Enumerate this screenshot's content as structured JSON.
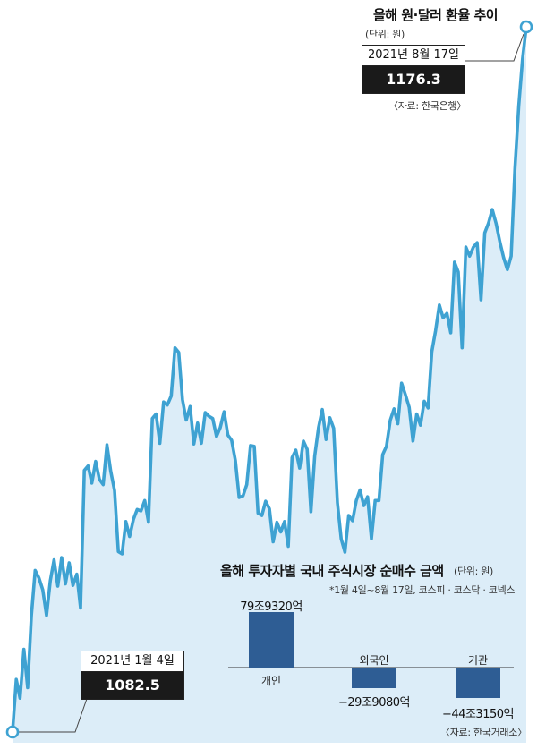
{
  "line_chart": {
    "title": "올해 원·달러 환율 추이",
    "unit": "(단위: 원)",
    "source": "〈자료: 한국은행〉",
    "start": {
      "date": "2021년 1월 4일",
      "value": "1082.5"
    },
    "end": {
      "date": "2021년 8월 17일",
      "value": "1176.3"
    }
  },
  "bar_chart": {
    "title": "올해 투자자별 국내 주식시장 순매수 금액",
    "unit": "(단위: 원)",
    "note": "*1월 4일~8월 17일, 코스피 · 코스닥 · 코넥스",
    "source": "〈자료: 한국거래소〉",
    "labels": {
      "individual": "79조9320억",
      "foreign": "−29조9080억",
      "institution": "−44조3150억"
    },
    "categories": {
      "individual": "개인",
      "foreign": "외국인",
      "institution": "기관"
    }
  },
  "chart_data": [
    {
      "type": "line",
      "title": "올해 원·달러 환율 추이",
      "ylabel": "원",
      "x_range": [
        "2021-01-04",
        "2021-08-17"
      ],
      "ylim": [
        1080,
        1178
      ],
      "values": [
        1082.5,
        1089.5,
        1087.0,
        1093.5,
        1088.4,
        1098.0,
        1104.0,
        1103.0,
        1101.4,
        1098.0,
        1102.6,
        1105.4,
        1101.9,
        1105.7,
        1102.2,
        1105.0,
        1102.0,
        1103.5,
        1099.0,
        1117.3,
        1117.9,
        1115.6,
        1118.5,
        1116.1,
        1115.4,
        1120.7,
        1117.2,
        1114.6,
        1106.5,
        1106.2,
        1110.5,
        1108.5,
        1110.8,
        1112.1,
        1111.9,
        1113.3,
        1110.4,
        1124.2,
        1124.8,
        1120.9,
        1126.4,
        1126.0,
        1127.2,
        1133.6,
        1133.0,
        1126.7,
        1124.0,
        1125.8,
        1120.8,
        1123.6,
        1120.9,
        1125.0,
        1124.5,
        1124.2,
        1121.8,
        1123.0,
        1125.1,
        1122.0,
        1121.3,
        1118.6,
        1113.7,
        1113.9,
        1115.4,
        1120.6,
        1120.5,
        1111.6,
        1111.3,
        1113.2,
        1112.2,
        1107.8,
        1110.4,
        1109.1,
        1110.5,
        1107.2,
        1119.0,
        1120.0,
        1117.6,
        1121.2,
        1120.1,
        1111.8,
        1119.2,
        1123.0,
        1125.4,
        1121.4,
        1124.3,
        1122.9,
        1113.0,
        1108.2,
        1106.4,
        1111.3,
        1110.6,
        1113.3,
        1114.7,
        1112.6,
        1113.8,
        1108.2,
        1113.3,
        1113.3,
        1119.4,
        1120.5,
        1124.0,
        1125.5,
        1123.5,
        1128.9,
        1127.4,
        1125.7,
        1121.2,
        1124.8,
        1123.3,
        1126.5,
        1125.6,
        1133.1,
        1135.9,
        1139.3,
        1137.6,
        1138.2,
        1135.6,
        1145.0,
        1143.7,
        1133.6,
        1147.0,
        1145.8,
        1147.0,
        1147.6,
        1140.0,
        1148.9,
        1150.2,
        1152.0,
        1150.2,
        1147.7,
        1145.6,
        1144.0,
        1145.8,
        1157.4,
        1165.8,
        1172.0,
        1176.3
      ]
    },
    {
      "type": "bar",
      "title": "올해 투자자별 국내 주식시장 순매수 금액",
      "ylabel": "원",
      "categories": [
        "개인",
        "외국인",
        "기관"
      ],
      "values": [
        79.932,
        -29.908,
        -44.315
      ],
      "value_unit": "조",
      "ylim": [
        -50,
        85
      ]
    }
  ]
}
